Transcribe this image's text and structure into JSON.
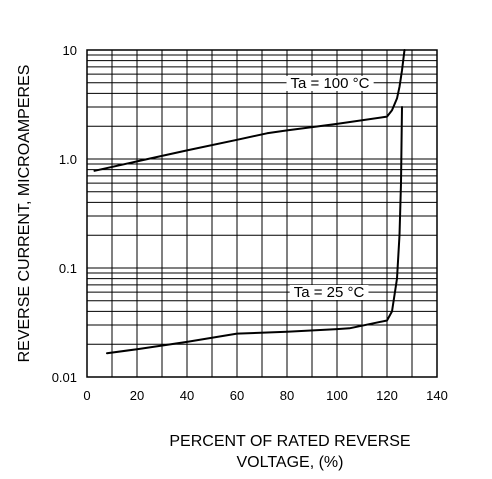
{
  "chart_data": {
    "type": "line",
    "title": "",
    "xlabel_lines": [
      "PERCENT OF RATED REVERSE",
      "VOLTAGE, (%)"
    ],
    "ylabel": "REVERSE CURRENT, MICROAMPERES",
    "xlim": [
      0,
      140
    ],
    "ylim": [
      0.01,
      10
    ],
    "yscale": "log",
    "grid": true,
    "x_ticks": [
      "0",
      "20",
      "40",
      "60",
      "80",
      "100",
      "120",
      "140"
    ],
    "y_ticks": [
      "0.01",
      "0.1",
      "1.0",
      "10"
    ],
    "series": [
      {
        "name": "Ta = 100 °C",
        "x": [
          3,
          20,
          40,
          60,
          72,
          80,
          100,
          120,
          122,
          124,
          125,
          126,
          127
        ],
        "y": [
          0.78,
          0.95,
          1.2,
          1.5,
          1.72,
          1.83,
          2.1,
          2.45,
          2.8,
          3.6,
          4.6,
          6.5,
          10.0
        ]
      },
      {
        "name": "Ta = 25 °C",
        "x": [
          8,
          20,
          40,
          60,
          80,
          100,
          105,
          120,
          122,
          124,
          125,
          125.6,
          126
        ],
        "y": [
          0.0165,
          0.018,
          0.021,
          0.025,
          0.026,
          0.0275,
          0.028,
          0.033,
          0.04,
          0.08,
          0.2,
          0.6,
          3.0
        ]
      }
    ]
  }
}
